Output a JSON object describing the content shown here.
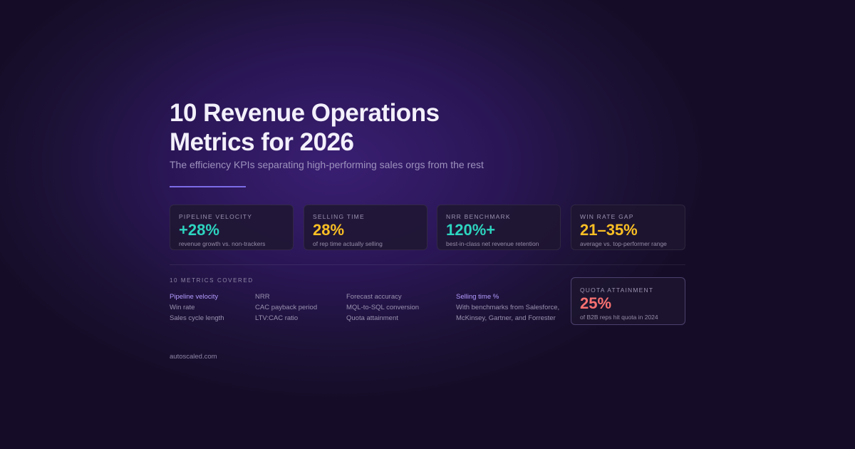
{
  "title_line1": "10 Revenue Operations",
  "title_line2": "Metrics for 2026",
  "subtitle": "The efficiency KPIs separating high-performing sales orgs from the rest",
  "colors": {
    "teal": "#2dd4bf",
    "yellow": "#fbbf24",
    "purple": "#b49cff",
    "red": "#f87171",
    "accent_rule": "#7d6ce6"
  },
  "stats": [
    {
      "label": "Pipeline velocity",
      "value": "+28%",
      "desc": "revenue growth vs. non-trackers",
      "color": "#2dd4bf"
    },
    {
      "label": "Selling time",
      "value": "28%",
      "desc": "of rep time actually selling",
      "color": "#fbbf24"
    },
    {
      "label": "NRR benchmark",
      "value": "120%+",
      "desc": "best-in-class net revenue retention",
      "color": "#2dd4bf"
    },
    {
      "label": "Win rate gap",
      "value": "21–35%",
      "desc": "average vs. top-performer range",
      "color": "#fbbf24"
    }
  ],
  "metrics_heading": "10 METRICS COVERED",
  "metrics_columns": [
    [
      "Pipeline velocity",
      "Win rate",
      "Sales cycle length"
    ],
    [
      "NRR",
      "CAC payback period",
      "LTV:CAC ratio"
    ],
    [
      "Forecast accuracy",
      "MQL-to-SQL conversion",
      "Quota attainment"
    ],
    [
      "Selling time %",
      "With benchmarks from Salesforce,",
      "McKinsey, Gartner, and Forrester"
    ]
  ],
  "quota": {
    "label": "Quota attainment",
    "value": "25%",
    "desc": "of B2B reps hit quota in 2024",
    "color": "#f87171"
  },
  "footer": "autoscaled.com"
}
